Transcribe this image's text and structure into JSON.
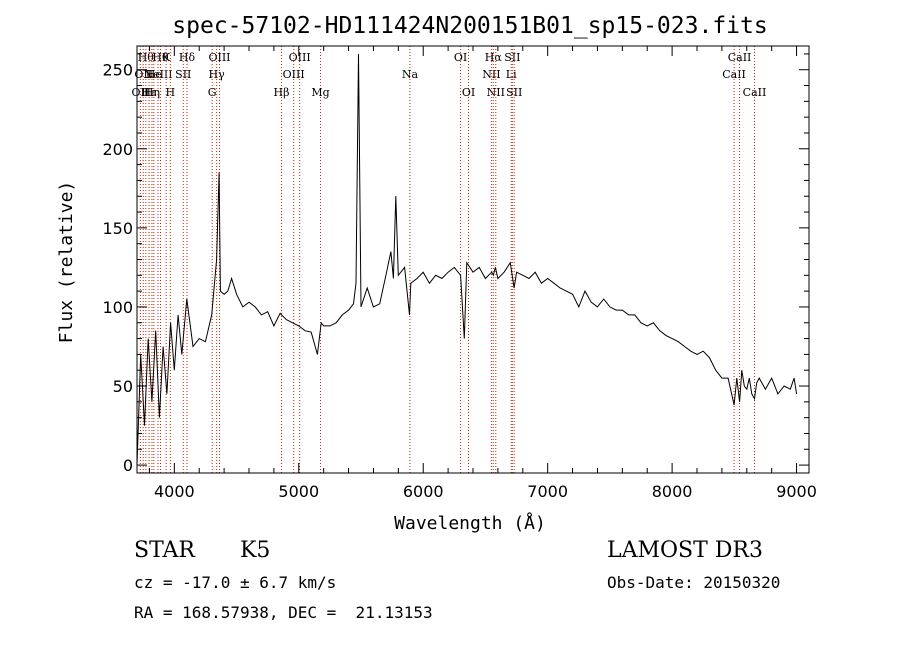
{
  "chart_data": {
    "type": "line",
    "title": "spec-57102-HD111424N200151B01_sp15-023.fits",
    "xlabel": "Wavelength (Å)",
    "ylabel": "Flux (relative)",
    "xlim": [
      3700,
      9100
    ],
    "ylim": [
      -5,
      265
    ],
    "xticks": [
      4000,
      5000,
      6000,
      7000,
      8000,
      9000
    ],
    "yticks": [
      0,
      50,
      100,
      150,
      200,
      250
    ],
    "grid": false,
    "line_color": "#000000",
    "marker_color": "#cc2200",
    "series": [
      {
        "x": [
          3700,
          3730,
          3760,
          3790,
          3820,
          3850,
          3880,
          3910,
          3940,
          3970,
          4000,
          4030,
          4060,
          4100,
          4150,
          4200,
          4250,
          4300,
          4340,
          4360,
          4370,
          4400,
          4430,
          4460,
          4500,
          4550,
          4600,
          4650,
          4700,
          4750,
          4800,
          4850,
          4900,
          4950,
          5000,
          5050,
          5100,
          5150,
          5180,
          5200,
          5250,
          5300,
          5350,
          5400,
          5440,
          5460,
          5480,
          5500,
          5550,
          5600,
          5650,
          5700,
          5740,
          5760,
          5780,
          5800,
          5850,
          5890,
          5900,
          5950,
          6000,
          6050,
          6100,
          6150,
          6200,
          6250,
          6300,
          6330,
          6350,
          6400,
          6450,
          6500,
          6550,
          6563,
          6580,
          6600,
          6650,
          6700,
          6730,
          6750,
          6800,
          6850,
          6900,
          6950,
          7000,
          7050,
          7100,
          7150,
          7200,
          7250,
          7300,
          7350,
          7400,
          7450,
          7500,
          7550,
          7600,
          7650,
          7700,
          7750,
          7800,
          7850,
          7900,
          7950,
          8000,
          8050,
          8100,
          8150,
          8200,
          8250,
          8300,
          8350,
          8400,
          8450,
          8498,
          8520,
          8542,
          8560,
          8580,
          8600,
          8620,
          8640,
          8662,
          8680,
          8700,
          8750,
          8800,
          8850,
          8900,
          8950,
          8980,
          9000
        ],
        "y": [
          0,
          70,
          25,
          80,
          40,
          85,
          30,
          75,
          45,
          90,
          60,
          95,
          70,
          105,
          75,
          80,
          78,
          95,
          130,
          185,
          110,
          108,
          110,
          118,
          108,
          100,
          103,
          100,
          95,
          97,
          88,
          96,
          92,
          90,
          88,
          85,
          84,
          70,
          90,
          88,
          88,
          90,
          95,
          98,
          102,
          115,
          260,
          100,
          112,
          100,
          102,
          120,
          135,
          118,
          170,
          120,
          125,
          95,
          115,
          118,
          122,
          115,
          120,
          118,
          122,
          125,
          120,
          80,
          128,
          122,
          125,
          118,
          122,
          120,
          125,
          118,
          122,
          128,
          112,
          122,
          120,
          118,
          122,
          115,
          118,
          115,
          112,
          110,
          108,
          100,
          110,
          103,
          100,
          105,
          100,
          98,
          98,
          95,
          95,
          90,
          88,
          90,
          85,
          82,
          80,
          78,
          75,
          72,
          70,
          72,
          68,
          60,
          55,
          55,
          38,
          55,
          40,
          60,
          50,
          48,
          55,
          45,
          42,
          52,
          55,
          48,
          55,
          45,
          50,
          48,
          55,
          45
        ]
      }
    ],
    "line_markers": [
      {
        "x": 3727,
        "label": "OII",
        "row": 2
      },
      {
        "x": 3750,
        "label": "OII",
        "row": 1
      },
      {
        "x": 3771,
        "label": "Hθ",
        "row": 0
      },
      {
        "x": 3797,
        "label": "Hε",
        "row": 2
      },
      {
        "x": 3820,
        "label": "Hη",
        "row": 2
      },
      {
        "x": 3835,
        "label": "He",
        "row": 1
      },
      {
        "x": 3869,
        "label": "NeIII",
        "row": 1
      },
      {
        "x": 3889,
        "label": "Hθ",
        "row": 0
      },
      {
        "x": 3934,
        "label": "K",
        "row": 0
      },
      {
        "x": 3968,
        "label": "H",
        "row": 2
      },
      {
        "x": 4072,
        "label": "SII",
        "row": 1
      },
      {
        "x": 4102,
        "label": "Hδ",
        "row": 0
      },
      {
        "x": 4304,
        "label": "G",
        "row": 2
      },
      {
        "x": 4340,
        "label": "Hγ",
        "row": 1
      },
      {
        "x": 4363,
        "label": "OIII",
        "row": 0
      },
      {
        "x": 4861,
        "label": "Hβ",
        "row": 2
      },
      {
        "x": 4959,
        "label": "OIII",
        "row": 1
      },
      {
        "x": 5007,
        "label": "OIII",
        "row": 0
      },
      {
        "x": 5175,
        "label": "Mg",
        "row": 2
      },
      {
        "x": 5893,
        "label": "Na",
        "row": 1
      },
      {
        "x": 6300,
        "label": "OI",
        "row": 0
      },
      {
        "x": 6364,
        "label": "OI",
        "row": 2
      },
      {
        "x": 6548,
        "label": "NII",
        "row": 1
      },
      {
        "x": 6563,
        "label": "Hα",
        "row": 0
      },
      {
        "x": 6583,
        "label": "NII",
        "row": 2
      },
      {
        "x": 6707,
        "label": "Li",
        "row": 1
      },
      {
        "x": 6716,
        "label": "SII",
        "row": 0
      },
      {
        "x": 6731,
        "label": "SII",
        "row": 2
      },
      {
        "x": 8498,
        "label": "CaII",
        "row": 1
      },
      {
        "x": 8542,
        "label": "CaII",
        "row": 0
      },
      {
        "x": 8662,
        "label": "CaII",
        "row": 2
      }
    ]
  },
  "info": {
    "object_class": "STAR",
    "subclass": "K5",
    "survey": "LAMOST DR3",
    "redshift": "cz = -17.0 ± 6.7 km/s",
    "obs_date": "Obs-Date: 20150320",
    "coords": "RA = 168.57938, DEC =  21.13153"
  }
}
